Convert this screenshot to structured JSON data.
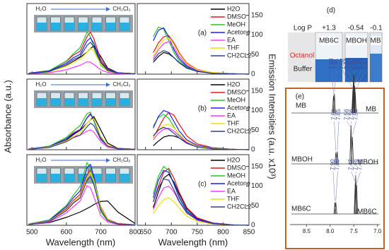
{
  "figure": {
    "ylabel": "Absorbance (a.u.)",
    "y2label": "Emission Intensities (a.u. x10³)",
    "xlabel": "Wavelength (nm)",
    "xlim": [
      485,
      800
    ],
    "xticks": [
      500,
      600,
      700,
      800
    ],
    "x2lim": [
      634,
      850
    ],
    "x2ticks": [
      650,
      700,
      750,
      800,
      850
    ],
    "ylim": [
      0,
      1.6
    ],
    "y2lim": [
      0,
      180
    ],
    "y2ticks": [
      0,
      50,
      100,
      150
    ],
    "inset_from": "H₂O",
    "inset_to": "CH₂Cl₂"
  },
  "chart_data": [
    {
      "type": "spectra",
      "label": "(a)",
      "x": [
        490,
        550,
        600,
        620,
        640,
        660,
        670,
        680,
        700,
        720,
        750,
        800
      ],
      "x2": [
        665,
        675,
        685,
        695,
        705,
        715,
        730,
        750,
        780,
        820,
        850
      ],
      "series": [
        {
          "name": "H2O",
          "color": "#000000",
          "values": [
            0.01,
            0.05,
            0.19,
            0.29,
            0.38,
            0.5,
            0.58,
            0.64,
            0.4,
            0.14,
            0.03,
            0.01
          ],
          "values2": [
            30,
            45,
            55,
            52,
            42,
            30,
            16,
            7,
            2,
            1,
            0
          ]
        },
        {
          "name": "DMSO",
          "color": "#e8141c",
          "values": [
            0.02,
            0.08,
            0.29,
            0.43,
            0.52,
            0.85,
            0.95,
            0.8,
            0.33,
            0.11,
            0.03,
            0.01
          ],
          "values2": [
            55,
            80,
            95,
            98,
            80,
            55,
            28,
            12,
            4,
            1,
            0
          ]
        },
        {
          "name": "MeOH",
          "color": "#1fcc1f",
          "values": [
            0.02,
            0.08,
            0.3,
            0.46,
            0.6,
            0.95,
            0.85,
            0.6,
            0.2,
            0.07,
            0.02,
            0.01
          ],
          "values2": [
            95,
            120,
            115,
            85,
            55,
            35,
            18,
            8,
            3,
            1,
            0
          ]
        },
        {
          "name": "Acetone",
          "color": "#1a1aff",
          "values": [
            0.02,
            0.07,
            0.25,
            0.37,
            0.45,
            0.75,
            0.82,
            0.7,
            0.28,
            0.1,
            0.03,
            0.01
          ],
          "values2": [
            85,
            112,
            118,
            95,
            62,
            40,
            20,
            9,
            3,
            1,
            0
          ]
        },
        {
          "name": "EA",
          "color": "#ff33ff",
          "values": [
            0.01,
            0.03,
            0.1,
            0.15,
            0.2,
            0.28,
            0.27,
            0.22,
            0.1,
            0.04,
            0.01,
            0
          ],
          "values2": [
            40,
            62,
            78,
            83,
            68,
            46,
            23,
            10,
            3,
            1,
            0
          ]
        },
        {
          "name": "THF",
          "color": "#e6e600",
          "values": [
            0.01,
            0.05,
            0.18,
            0.27,
            0.33,
            0.5,
            0.59,
            0.52,
            0.22,
            0.08,
            0.02,
            0.01
          ],
          "values2": [
            45,
            70,
            88,
            92,
            75,
            52,
            26,
            11,
            4,
            1,
            0
          ]
        },
        {
          "name": "CH2CL2",
          "color": "#2b3d8f",
          "values": [
            0.01,
            0.06,
            0.22,
            0.33,
            0.4,
            0.65,
            0.72,
            0.62,
            0.26,
            0.09,
            0.02,
            0.01
          ],
          "values2": [
            35,
            52,
            60,
            55,
            42,
            29,
            15,
            7,
            2,
            1,
            0
          ]
        }
      ]
    },
    {
      "type": "spectra",
      "label": "(b)",
      "x": [
        490,
        550,
        600,
        620,
        640,
        660,
        670,
        680,
        700,
        720,
        750,
        800
      ],
      "x2": [
        665,
        675,
        685,
        695,
        705,
        715,
        730,
        750,
        780,
        820,
        850
      ],
      "series": [
        {
          "name": "H2O",
          "color": "#000000",
          "values": [
            0.01,
            0.06,
            0.22,
            0.34,
            0.44,
            0.6,
            0.68,
            0.75,
            0.45,
            0.15,
            0.03,
            0.01
          ],
          "values2": [
            10,
            22,
            32,
            36,
            35,
            30,
            18,
            8,
            3,
            1,
            0
          ]
        },
        {
          "name": "DMSO",
          "color": "#e8141c",
          "values": [
            0.02,
            0.07,
            0.25,
            0.38,
            0.46,
            0.72,
            0.82,
            0.7,
            0.3,
            0.1,
            0.03,
            0.01
          ],
          "values2": [
            30,
            55,
            80,
            95,
            88,
            65,
            35,
            15,
            5,
            1,
            0
          ]
        },
        {
          "name": "MeOH",
          "color": "#1fcc1f",
          "values": [
            0.02,
            0.08,
            0.28,
            0.42,
            0.55,
            0.82,
            0.85,
            0.65,
            0.24,
            0.08,
            0.02,
            0.01
          ],
          "values2": [
            60,
            82,
            90,
            80,
            58,
            38,
            20,
            9,
            3,
            1,
            0
          ]
        },
        {
          "name": "Acetone",
          "color": "#1a1aff",
          "values": [
            0.02,
            0.07,
            0.25,
            0.36,
            0.45,
            0.72,
            0.8,
            0.68,
            0.27,
            0.09,
            0.02,
            0.01
          ],
          "values2": [
            55,
            85,
            100,
            95,
            72,
            48,
            25,
            11,
            4,
            1,
            0
          ]
        },
        {
          "name": "EA",
          "color": "#ff33ff",
          "values": [
            0.02,
            0.06,
            0.2,
            0.3,
            0.33,
            0.42,
            0.45,
            0.4,
            0.18,
            0.06,
            0.02,
            0.01
          ],
          "values2": [
            25,
            42,
            52,
            55,
            48,
            35,
            19,
            8,
            3,
            1,
            0
          ]
        },
        {
          "name": "THF",
          "color": "#e6e600",
          "values": [
            0.01,
            0.06,
            0.2,
            0.3,
            0.38,
            0.6,
            0.68,
            0.7,
            0.3,
            0.1,
            0.02,
            0.01
          ],
          "values2": [
            30,
            50,
            62,
            65,
            56,
            40,
            21,
            9,
            3,
            1,
            0
          ]
        },
        {
          "name": "CH2CL2",
          "color": "#2b3d8f",
          "values": [
            0.01,
            0.05,
            0.18,
            0.27,
            0.33,
            0.52,
            0.6,
            0.55,
            0.23,
            0.08,
            0.02,
            0.01
          ],
          "values2": [
            35,
            50,
            57,
            52,
            42,
            30,
            16,
            7,
            2,
            1,
            0
          ]
        }
      ]
    },
    {
      "type": "spectra",
      "label": "(c)",
      "x": [
        490,
        550,
        600,
        620,
        640,
        660,
        670,
        680,
        700,
        720,
        750,
        800
      ],
      "x2": [
        665,
        675,
        685,
        695,
        705,
        715,
        730,
        750,
        780,
        820,
        850
      ],
      "series": [
        {
          "name": "H2O",
          "color": "#000000",
          "values": [
            0.02,
            0.06,
            0.18,
            0.24,
            0.3,
            0.38,
            0.42,
            0.47,
            0.54,
            0.55,
            0.3,
            0.04
          ],
          "values2": [
            45,
            85,
            120,
            130,
            110,
            80,
            42,
            18,
            6,
            1,
            0
          ]
        },
        {
          "name": "DMSO",
          "color": "#e8141c",
          "values": [
            0.03,
            0.1,
            0.38,
            0.56,
            0.7,
            1.15,
            1.25,
            1.05,
            0.42,
            0.14,
            0.04,
            0.01
          ],
          "values2": [
            60,
            100,
            135,
            145,
            120,
            85,
            45,
            19,
            6,
            1,
            0
          ]
        },
        {
          "name": "MeOH",
          "color": "#1fcc1f",
          "values": [
            0.03,
            0.12,
            0.45,
            0.68,
            0.88,
            1.42,
            1.3,
            0.95,
            0.3,
            0.1,
            0.03,
            0.01
          ],
          "values2": [
            80,
            125,
            150,
            140,
            105,
            70,
            35,
            15,
            5,
            1,
            0
          ]
        },
        {
          "name": "Acetone",
          "color": "#1a1aff",
          "values": [
            0.03,
            0.11,
            0.42,
            0.62,
            0.78,
            1.3,
            1.38,
            1.1,
            0.38,
            0.12,
            0.03,
            0.01
          ],
          "values2": [
            70,
            115,
            140,
            135,
            105,
            72,
            37,
            16,
            5,
            1,
            0
          ]
        },
        {
          "name": "EA",
          "color": "#ff33ff",
          "values": [
            0.02,
            0.07,
            0.28,
            0.42,
            0.55,
            0.9,
            0.85,
            0.65,
            0.22,
            0.07,
            0.02,
            0.01
          ],
          "values2": [
            40,
            70,
            95,
            100,
            85,
            60,
            31,
            13,
            4,
            1,
            0
          ]
        },
        {
          "name": "THF",
          "color": "#e6e600",
          "values": [
            0.03,
            0.1,
            0.35,
            0.52,
            0.65,
            1.08,
            1.2,
            1.02,
            0.4,
            0.13,
            0.03,
            0.01
          ],
          "values2": [
            30,
            50,
            65,
            70,
            60,
            44,
            23,
            10,
            3,
            1,
            0
          ]
        },
        {
          "name": "CH2CL2",
          "color": "#2b3d8f",
          "values": [
            0.02,
            0.09,
            0.33,
            0.5,
            0.62,
            1.02,
            1.1,
            0.92,
            0.35,
            0.11,
            0.03,
            0.01
          ],
          "values2": [
            60,
            95,
            118,
            115,
            90,
            62,
            32,
            14,
            4,
            1,
            0
          ]
        }
      ]
    },
    {
      "type": "nmr",
      "label": "(e)",
      "xlim": [
        8.85,
        6.95
      ],
      "xticks": [
        8.5,
        {
          "value": 8,
          "label": "8.0"
        },
        7.5,
        {
          "value": 7,
          "label": "7.0"
        }
      ],
      "series": [
        {
          "name": "MB",
          "peaks": [
            7.93,
            7.91,
            7.52,
            7.51,
            7.5,
            7.5,
            7.48,
            7.47
          ],
          "value_labels": [
            "7.93",
            "7.91",
            "7.52",
            "7.51",
            "7.50",
            "7.50",
            "7.48",
            "7.47"
          ],
          "heights": [
            0.45,
            0.5,
            0.6,
            0.8,
            1.0,
            0.95,
            0.7,
            0.55
          ]
        },
        {
          "name": "MBOH",
          "peaks": [
            7.88,
            7.85,
            7.56,
            7.56,
            7.53
          ],
          "value_labels": [
            "7.88",
            "7.85",
            "7.56",
            "7.56",
            "7.53"
          ],
          "heights": [
            0.3,
            0.32,
            0.9,
            1.0,
            0.7
          ]
        },
        {
          "name": "MB6C",
          "peaks": [
            7.9,
            7.88,
            7.47,
            7.46,
            7.44
          ],
          "value_labels": [
            "7.90",
            "7.88",
            "7.47",
            "7.46",
            "7.44"
          ],
          "heights": [
            0.3,
            0.3,
            0.8,
            1.0,
            0.75
          ]
        }
      ]
    }
  ],
  "photo": {
    "label": "(d)",
    "logp_title": "Log P",
    "logp": [
      "+1.3",
      "-0.54",
      "-0.1"
    ],
    "samples": [
      "MB6C",
      "MBOH",
      "MB"
    ],
    "top_layer": "Octanol",
    "bottom_layer": "Buffer"
  }
}
